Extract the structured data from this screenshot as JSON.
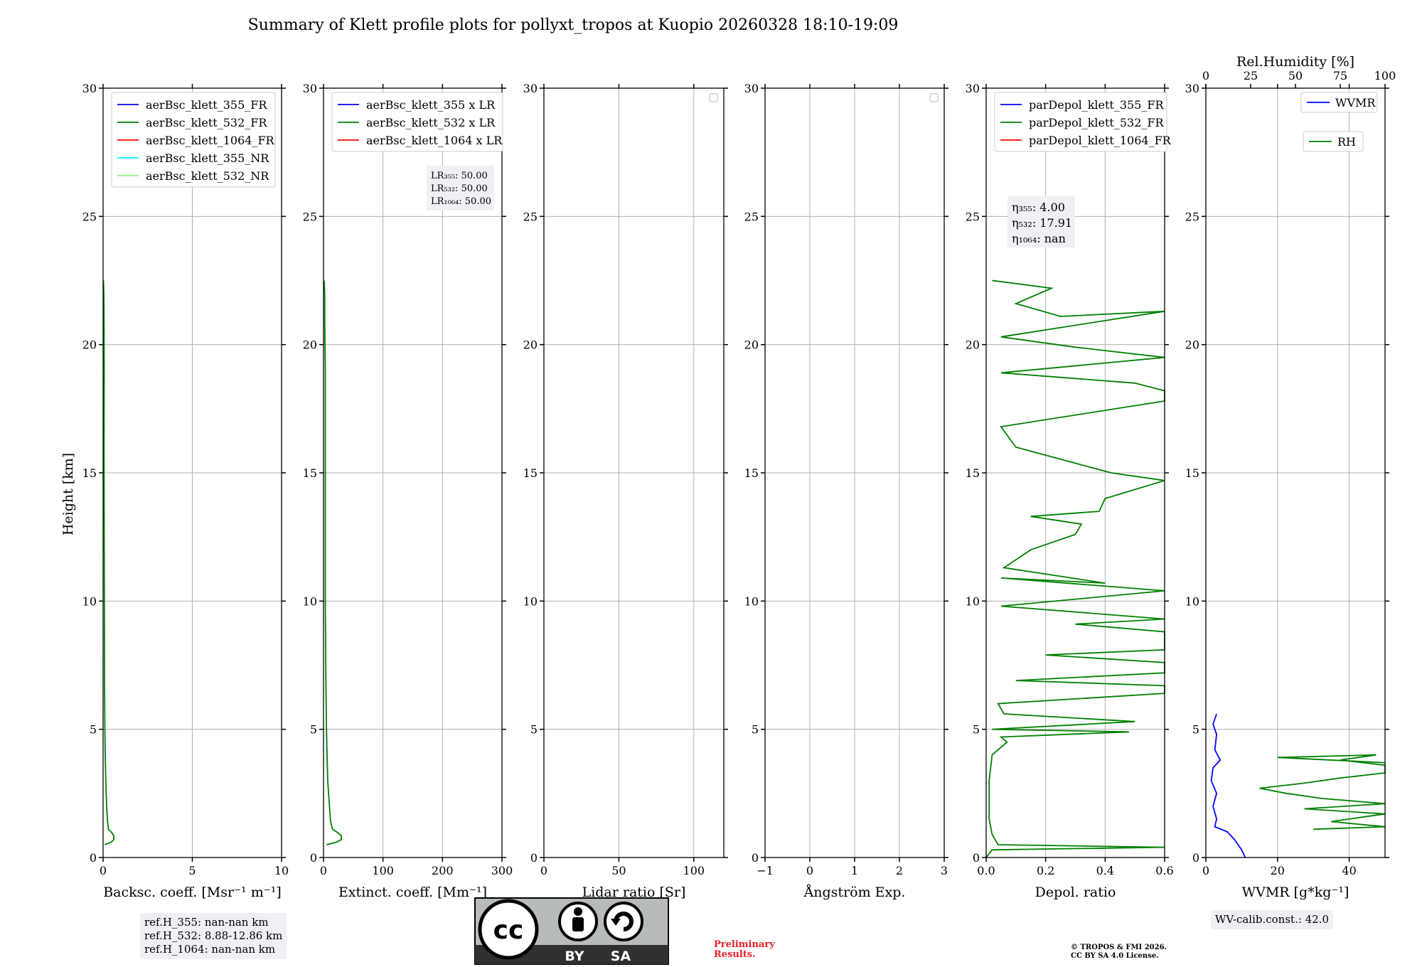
{
  "title": "Summary of Klett profile plots for pollyxt_tropos at Kuopio 20260328 18:10-19:09",
  "y_label": "Height [km]",
  "y_ticks": [
    "0",
    "5",
    "10",
    "15",
    "20",
    "25",
    "30"
  ],
  "chart_data": [
    {
      "type": "line",
      "id": "bsc",
      "xlabel": "Backsc. coeff. [Msr⁻¹ m⁻¹]",
      "xlim": [
        0,
        10
      ],
      "ylim": [
        0,
        30
      ],
      "x_ticks": [
        "0",
        "5",
        "10"
      ],
      "legend": [
        "aerBsc_klett_355_FR",
        "aerBsc_klett_532_FR",
        "aerBsc_klett_1064_FR",
        "aerBsc_klett_355_NR",
        "aerBsc_klett_532_NR"
      ],
      "legend_colors": [
        "#0000ff",
        "#008000",
        "#ff0000",
        "#00ffff",
        "#90ee90"
      ],
      "series": [
        {
          "name": "aerBsc_klett_532_FR",
          "color": "#008000",
          "points": [
            [
              0.1,
              0.5
            ],
            [
              0.45,
              0.6
            ],
            [
              0.6,
              0.7
            ],
            [
              0.6,
              0.85
            ],
            [
              0.45,
              1.0
            ],
            [
              0.3,
              1.1
            ],
            [
              0.25,
              1.4
            ],
            [
              0.2,
              2.0
            ],
            [
              0.15,
              3.0
            ],
            [
              0.12,
              4.0
            ],
            [
              0.1,
              5.0
            ],
            [
              0.08,
              7.0
            ],
            [
              0.07,
              10.0
            ],
            [
              0.06,
              13.0
            ],
            [
              0.05,
              16.0
            ],
            [
              0.06,
              19.0
            ],
            [
              0.05,
              21.0
            ],
            [
              0.04,
              22.0
            ],
            [
              0.02,
              22.5
            ]
          ]
        }
      ]
    },
    {
      "type": "line",
      "id": "ext",
      "xlabel": "Extinct. coeff. [Mm⁻¹]",
      "xlim": [
        0,
        300
      ],
      "ylim": [
        0,
        30
      ],
      "x_ticks": [
        "0",
        "100",
        "200",
        "300"
      ],
      "legend": [
        "aerBsc_klett_355 x LR",
        "aerBsc_klett_532 x LR",
        "aerBsc_klett_1064 x LR"
      ],
      "legend_colors": [
        "#0000ff",
        "#008000",
        "#ff0000"
      ],
      "lr_lines": [
        "LR₃₅₅: 50.00",
        "LR₅₃₂: 50.00",
        "LR₁₀₆₄: 50.00"
      ],
      "series": [
        {
          "name": "aerBsc_klett_532 x LR",
          "color": "#008000",
          "points": [
            [
              5,
              0.5
            ],
            [
              22,
              0.6
            ],
            [
              30,
              0.7
            ],
            [
              30,
              0.85
            ],
            [
              22,
              1.0
            ],
            [
              15,
              1.1
            ],
            [
              12,
              1.4
            ],
            [
              10,
              2.0
            ],
            [
              7,
              3.0
            ],
            [
              6,
              4.0
            ],
            [
              5,
              5.0
            ],
            [
              4,
              7.0
            ],
            [
              3,
              10.0
            ],
            [
              3,
              13.0
            ],
            [
              3,
              16.0
            ],
            [
              3,
              19.0
            ],
            [
              2,
              21.0
            ],
            [
              2,
              22.0
            ],
            [
              1,
              22.5
            ]
          ]
        }
      ]
    },
    {
      "type": "line",
      "id": "lr",
      "xlabel": "Lidar ratio [Sr]",
      "xlim": [
        0,
        120
      ],
      "ylim": [
        0,
        30
      ],
      "x_ticks": [
        "0",
        "50",
        "100"
      ],
      "legend": [],
      "series": []
    },
    {
      "type": "line",
      "id": "ang",
      "xlabel": "Ångström Exp.",
      "xlim": [
        -1,
        3
      ],
      "ylim": [
        0,
        30
      ],
      "x_ticks": [
        "−1",
        "0",
        "1",
        "2",
        "3"
      ],
      "legend": [],
      "series": []
    },
    {
      "type": "line",
      "id": "dep",
      "xlabel": "Depol. ratio",
      "xlim": [
        0,
        0.6
      ],
      "ylim": [
        0,
        30
      ],
      "x_ticks": [
        "0.0",
        "0.2",
        "0.4",
        "0.6"
      ],
      "legend": [
        "parDepol_klett_355_FR",
        "parDepol_klett_532_FR",
        "parDepol_klett_1064_FR"
      ],
      "legend_colors": [
        "#0000ff",
        "#008000",
        "#ff0000"
      ],
      "eta_lines": [
        "η₃₅₅: 4.00",
        "η₅₃₂: 17.91",
        "η₁₀₆₄: nan"
      ],
      "series": [
        {
          "name": "parDepol_klett_532_FR",
          "color": "#008000",
          "points": [
            [
              0.0,
              0.0
            ],
            [
              0.02,
              0.3
            ],
            [
              0.6,
              0.4
            ],
            [
              0.04,
              0.5
            ],
            [
              0.02,
              0.9
            ],
            [
              0.01,
              1.5
            ],
            [
              0.01,
              3.0
            ],
            [
              0.02,
              4.0
            ],
            [
              0.07,
              4.5
            ],
            [
              0.05,
              4.7
            ],
            [
              0.48,
              4.9
            ],
            [
              0.02,
              5.0
            ],
            [
              0.5,
              5.3
            ],
            [
              0.06,
              5.6
            ],
            [
              0.04,
              6.0
            ],
            [
              0.6,
              6.4
            ],
            [
              0.6,
              6.7
            ],
            [
              0.1,
              6.9
            ],
            [
              0.6,
              7.2
            ],
            [
              0.6,
              7.6
            ],
            [
              0.2,
              7.9
            ],
            [
              0.6,
              8.1
            ],
            [
              0.6,
              8.5
            ],
            [
              0.6,
              8.8
            ],
            [
              0.3,
              9.1
            ],
            [
              0.6,
              9.3
            ],
            [
              0.05,
              9.8
            ],
            [
              0.6,
              10.4
            ],
            [
              0.05,
              10.9
            ],
            [
              0.4,
              10.7
            ],
            [
              0.06,
              11.3
            ],
            [
              0.15,
              12.0
            ],
            [
              0.3,
              12.6
            ],
            [
              0.32,
              13.0
            ],
            [
              0.15,
              13.3
            ],
            [
              0.38,
              13.5
            ],
            [
              0.4,
              14.0
            ],
            [
              0.6,
              14.7
            ],
            [
              0.42,
              15.0
            ],
            [
              0.1,
              16.0
            ],
            [
              0.05,
              16.8
            ],
            [
              0.6,
              17.8
            ],
            [
              0.6,
              18.2
            ],
            [
              0.5,
              18.5
            ],
            [
              0.05,
              18.9
            ],
            [
              0.6,
              19.5
            ],
            [
              0.3,
              19.9
            ],
            [
              0.05,
              20.3
            ],
            [
              0.6,
              21.3
            ],
            [
              0.25,
              21.1
            ],
            [
              0.1,
              21.6
            ],
            [
              0.22,
              22.2
            ],
            [
              0.02,
              22.5
            ]
          ]
        }
      ]
    },
    {
      "type": "line",
      "id": "wv",
      "xlabel": "WVMR [g*kg⁻¹]",
      "xlim": [
        0,
        50
      ],
      "ylim": [
        0,
        30
      ],
      "x_ticks": [
        "0",
        "20",
        "40"
      ],
      "top_label": "Rel.Humidity [%]",
      "top_ticks": [
        "0",
        "25",
        "50",
        "75",
        "100"
      ],
      "top_xlim": [
        0,
        100
      ],
      "legend": [
        "WVMR",
        "RH"
      ],
      "legend_colors": [
        "#0000ff",
        "#008000"
      ],
      "series": [
        {
          "name": "WVMR",
          "color": "#0000ff",
          "points": [
            [
              11,
              0.0
            ],
            [
              10,
              0.3
            ],
            [
              8,
              0.7
            ],
            [
              6,
              1.0
            ],
            [
              2.5,
              1.2
            ],
            [
              3,
              1.5
            ],
            [
              2,
              2.0
            ],
            [
              3,
              2.5
            ],
            [
              1.5,
              3.0
            ],
            [
              2,
              3.5
            ],
            [
              4,
              3.8
            ],
            [
              2.5,
              4.2
            ],
            [
              3,
              4.8
            ],
            [
              2,
              5.2
            ],
            [
              3,
              5.6
            ]
          ]
        },
        {
          "name": "RH",
          "color": "#008000",
          "points": [
            [
              60,
              1.1
            ],
            [
              100,
              1.2
            ],
            [
              70,
              1.4
            ],
            [
              100,
              1.7
            ],
            [
              55,
              1.9
            ],
            [
              100,
              2.1
            ],
            [
              65,
              2.3
            ],
            [
              45,
              2.5
            ],
            [
              30,
              2.7
            ],
            [
              55,
              2.9
            ],
            [
              75,
              3.1
            ],
            [
              100,
              3.3
            ],
            [
              100,
              3.6
            ],
            [
              75,
              3.8
            ],
            [
              95,
              4.0
            ],
            [
              40,
              3.9
            ],
            [
              100,
              3.7
            ]
          ]
        }
      ]
    }
  ],
  "refH_lines": [
    "ref.H_355: nan-nan km",
    "ref.H_532: 8.88-12.86 km",
    "ref.H_1064: nan-nan km"
  ],
  "wv_calib": "WV-calib.const.: 42.0",
  "badge": {
    "cc": "cc",
    "by": "BY",
    "sa": "SA"
  },
  "preliminary": [
    "Preliminary",
    "Results."
  ],
  "copyright": [
    "© TROPOS & FMI 2026.",
    "CC BY SA 4.0 License."
  ]
}
